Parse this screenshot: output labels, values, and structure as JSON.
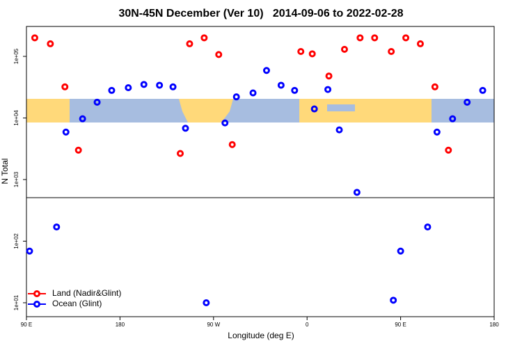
{
  "chart_data": {
    "type": "scatter",
    "title": "30N-45N December (Ver 10)   2014-09-06 to 2022-02-28",
    "x_label": "Longitude (deg E)",
    "y_label": "N Total",
    "xlim": [
      90,
      540
    ],
    "xticks": [
      {
        "value": 90,
        "label": "90 E"
      },
      180,
      {
        "value": 270,
        "label": "90 W"
      },
      {
        "value": 360,
        "label": "0"
      },
      {
        "value": 450,
        "label": "90 E"
      },
      {
        "value": 540,
        "label": "180"
      }
    ],
    "ylim": [
      5.94,
      306000
    ],
    "log_y": true,
    "yticks": [
      {
        "value": 10,
        "label": "1e+01"
      },
      {
        "value": 100,
        "label": "1e+02"
      },
      {
        "value": 1000,
        "label": "1e+03"
      },
      {
        "value": 10000,
        "label": "1e+04"
      },
      {
        "value": 100000,
        "label": "1e+05"
      }
    ],
    "legend": "bottom-left",
    "series": [
      {
        "name": "Land (Nadir&Glint)",
        "color": "#ff0000",
        "x": [
          98,
          113,
          127,
          140,
          238,
          247,
          261,
          275,
          288,
          354,
          365,
          381,
          396,
          411,
          425,
          441,
          455,
          469,
          483,
          496
        ],
        "values": [
          200000,
          160000,
          32000,
          3000,
          2650,
          160000,
          200000,
          107000,
          3700,
          120000,
          110000,
          48000,
          130000,
          200000,
          200000,
          120000,
          200000,
          160000,
          32000,
          3000
        ]
      },
      {
        "name": "Ocean (Glint)",
        "color": "#0000ff",
        "x": [
          93,
          119,
          128,
          144,
          158,
          172,
          188,
          203,
          218,
          231,
          243,
          263,
          281,
          292,
          308,
          321,
          335,
          348,
          367,
          380,
          391,
          408,
          443,
          450,
          476,
          485,
          500,
          514,
          529
        ],
        "values": [
          69,
          170,
          5900,
          9700,
          18000,
          28000,
          31000,
          35000,
          34000,
          32000,
          6800,
          10,
          8300,
          22000,
          25500,
          59000,
          34000,
          28000,
          14000,
          29000,
          6400,
          620,
          11,
          69,
          170,
          5900,
          9700,
          18000,
          28000
        ]
      }
    ]
  }
}
